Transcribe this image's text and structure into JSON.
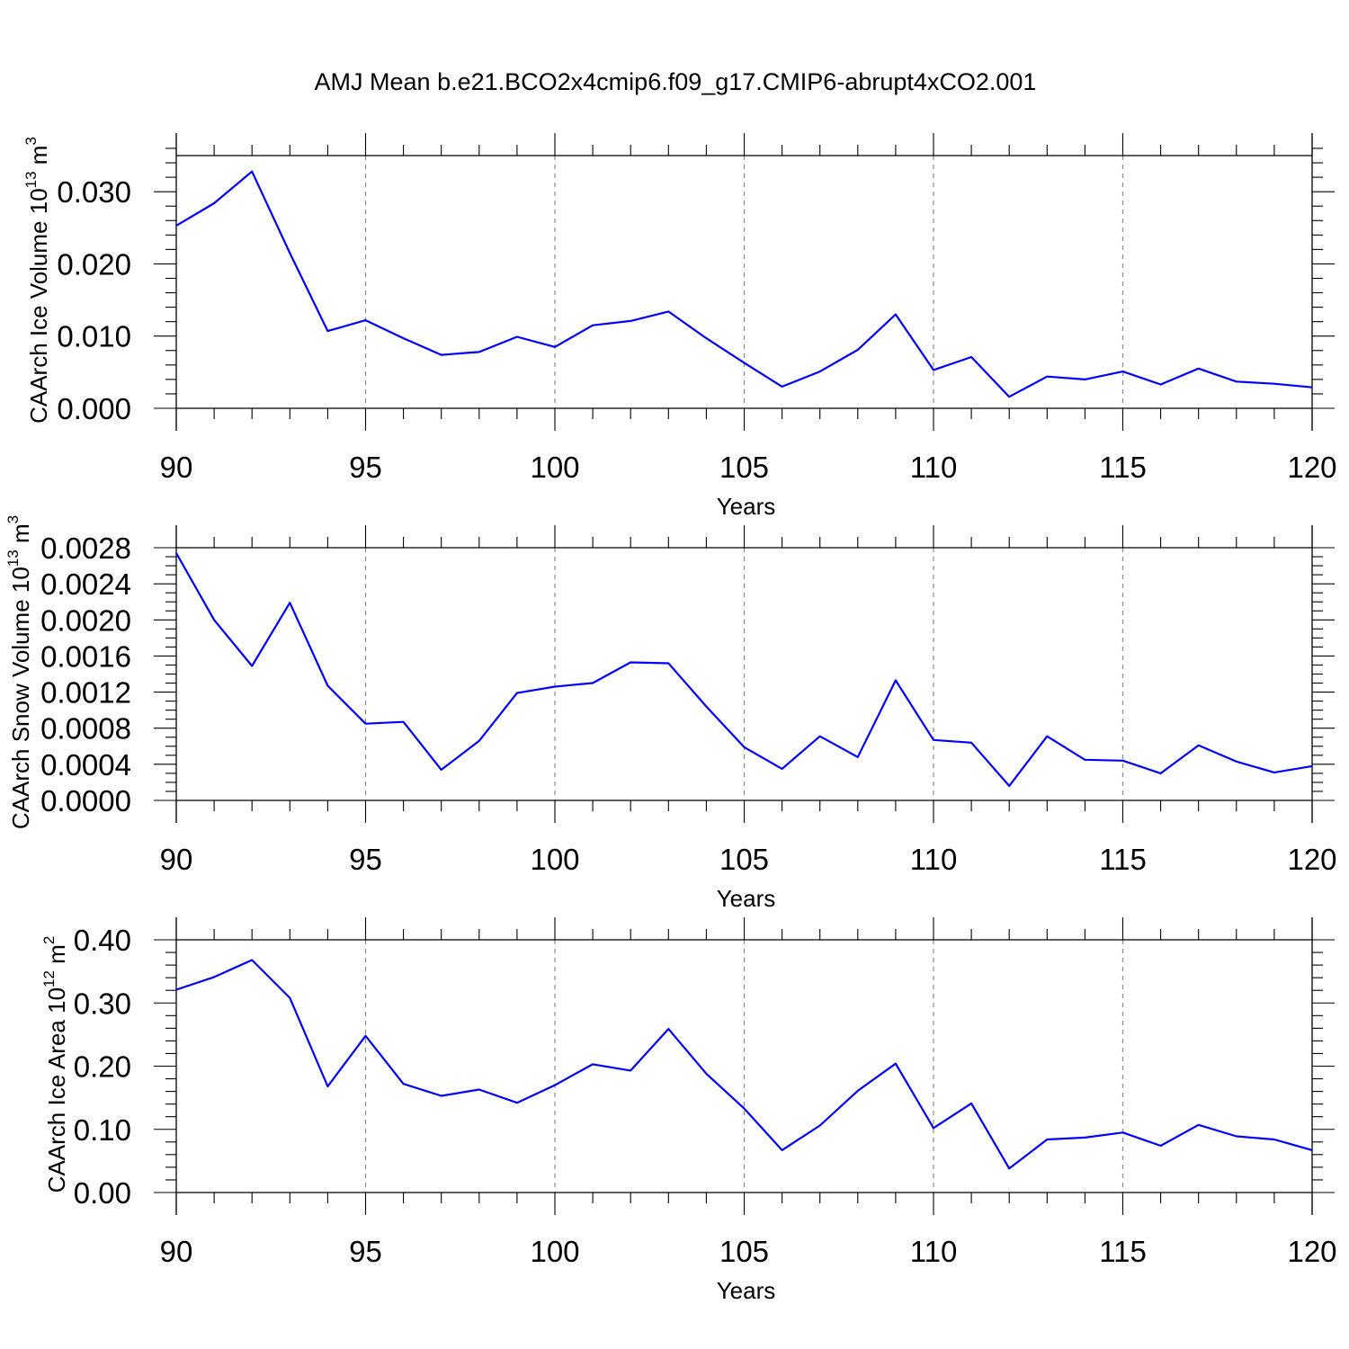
{
  "title": "AMJ Mean b.e21.BCO2x4cmip6.f09_g17.CMIP6-abrupt4xCO2.001",
  "colors": {
    "line": "#0000ff",
    "axis": "#000000",
    "grid": "#888888"
  },
  "chart_data": [
    {
      "type": "line",
      "xlabel": "Years",
      "ylabel": {
        "text": "CAArch Ice Volume 10",
        "exp": "13",
        "unit": " m",
        "unit_exp": "3"
      },
      "xlim": [
        90,
        120
      ],
      "ylim": [
        0,
        0.035
      ],
      "xticks": [
        90,
        95,
        100,
        105,
        110,
        115,
        120
      ],
      "xtick_labels": [
        "90",
        "95",
        "100",
        "105",
        "110",
        "115",
        "120"
      ],
      "yticks": [
        0,
        0.01,
        0.02,
        0.03
      ],
      "ytick_labels": [
        "0.000",
        "0.010",
        "0.020",
        "0.030"
      ],
      "y_minor_step": 0.002,
      "grid": "vertical dashed at major x ticks",
      "x": [
        90,
        91,
        92,
        93,
        94,
        95,
        96,
        97,
        98,
        99,
        100,
        101,
        102,
        103,
        104,
        105,
        106,
        107,
        108,
        109,
        110,
        111,
        112,
        113,
        114,
        115,
        116,
        117,
        118,
        119,
        120
      ],
      "values": [
        0.0253,
        0.0284,
        0.0328,
        0.0215,
        0.0107,
        0.0122,
        0.0097,
        0.0074,
        0.0078,
        0.0099,
        0.0085,
        0.0115,
        0.0121,
        0.0134,
        0.0097,
        0.0063,
        0.003,
        0.0051,
        0.0081,
        0.013,
        0.0053,
        0.0071,
        0.0016,
        0.0044,
        0.004,
        0.0051,
        0.0033,
        0.0055,
        0.0037,
        0.0034,
        0.0029
      ]
    },
    {
      "type": "line",
      "xlabel": "Years",
      "ylabel": {
        "text": "CAArch Snow Volume 10",
        "exp": "13",
        "unit": " m",
        "unit_exp": "3"
      },
      "xlim": [
        90,
        120
      ],
      "ylim": [
        0,
        0.0028
      ],
      "xticks": [
        90,
        95,
        100,
        105,
        110,
        115,
        120
      ],
      "xtick_labels": [
        "90",
        "95",
        "100",
        "105",
        "110",
        "115",
        "120"
      ],
      "yticks": [
        0,
        0.0004,
        0.0008,
        0.0012,
        0.0016,
        0.002,
        0.0024,
        0.0028
      ],
      "ytick_labels": [
        "0.0000",
        "0.0004",
        "0.0008",
        "0.0012",
        "0.0016",
        "0.0020",
        "0.0024",
        "0.0028"
      ],
      "y_minor_step": 0.0001,
      "grid": "vertical dashed at major x ticks",
      "x": [
        90,
        91,
        92,
        93,
        94,
        95,
        96,
        97,
        98,
        99,
        100,
        101,
        102,
        103,
        104,
        105,
        106,
        107,
        108,
        109,
        110,
        111,
        112,
        113,
        114,
        115,
        116,
        117,
        118,
        119,
        120
      ],
      "values": [
        0.00274,
        0.002,
        0.00149,
        0.00219,
        0.00127,
        0.00085,
        0.00087,
        0.00034,
        0.00066,
        0.00119,
        0.00126,
        0.0013,
        0.00153,
        0.00152,
        0.00104,
        0.00059,
        0.00035,
        0.00071,
        0.00048,
        0.00133,
        0.00067,
        0.00064,
        0.00016,
        0.00071,
        0.00045,
        0.00044,
        0.0003,
        0.00061,
        0.00043,
        0.00031,
        0.00038
      ]
    },
    {
      "type": "line",
      "xlabel": "Years",
      "ylabel": {
        "text": "CAArch Ice Area 10",
        "exp": "12",
        "unit": " m",
        "unit_exp": "2"
      },
      "xlim": [
        90,
        120
      ],
      "ylim": [
        0,
        0.4
      ],
      "xticks": [
        90,
        95,
        100,
        105,
        110,
        115,
        120
      ],
      "xtick_labels": [
        "90",
        "95",
        "100",
        "105",
        "110",
        "115",
        "120"
      ],
      "yticks": [
        0,
        0.1,
        0.2,
        0.3,
        0.4
      ],
      "ytick_labels": [
        "0.00",
        "0.10",
        "0.20",
        "0.30",
        "0.40"
      ],
      "y_minor_step": 0.02,
      "grid": "vertical dashed at major x ticks",
      "x": [
        90,
        91,
        92,
        93,
        94,
        95,
        96,
        97,
        98,
        99,
        100,
        101,
        102,
        103,
        104,
        105,
        106,
        107,
        108,
        109,
        110,
        111,
        112,
        113,
        114,
        115,
        116,
        117,
        118,
        119,
        120
      ],
      "values": [
        0.321,
        0.341,
        0.368,
        0.308,
        0.168,
        0.248,
        0.172,
        0.153,
        0.163,
        0.142,
        0.17,
        0.203,
        0.193,
        0.259,
        0.188,
        0.133,
        0.067,
        0.106,
        0.161,
        0.204,
        0.102,
        0.141,
        0.038,
        0.084,
        0.087,
        0.095,
        0.074,
        0.107,
        0.089,
        0.084,
        0.067
      ]
    }
  ]
}
